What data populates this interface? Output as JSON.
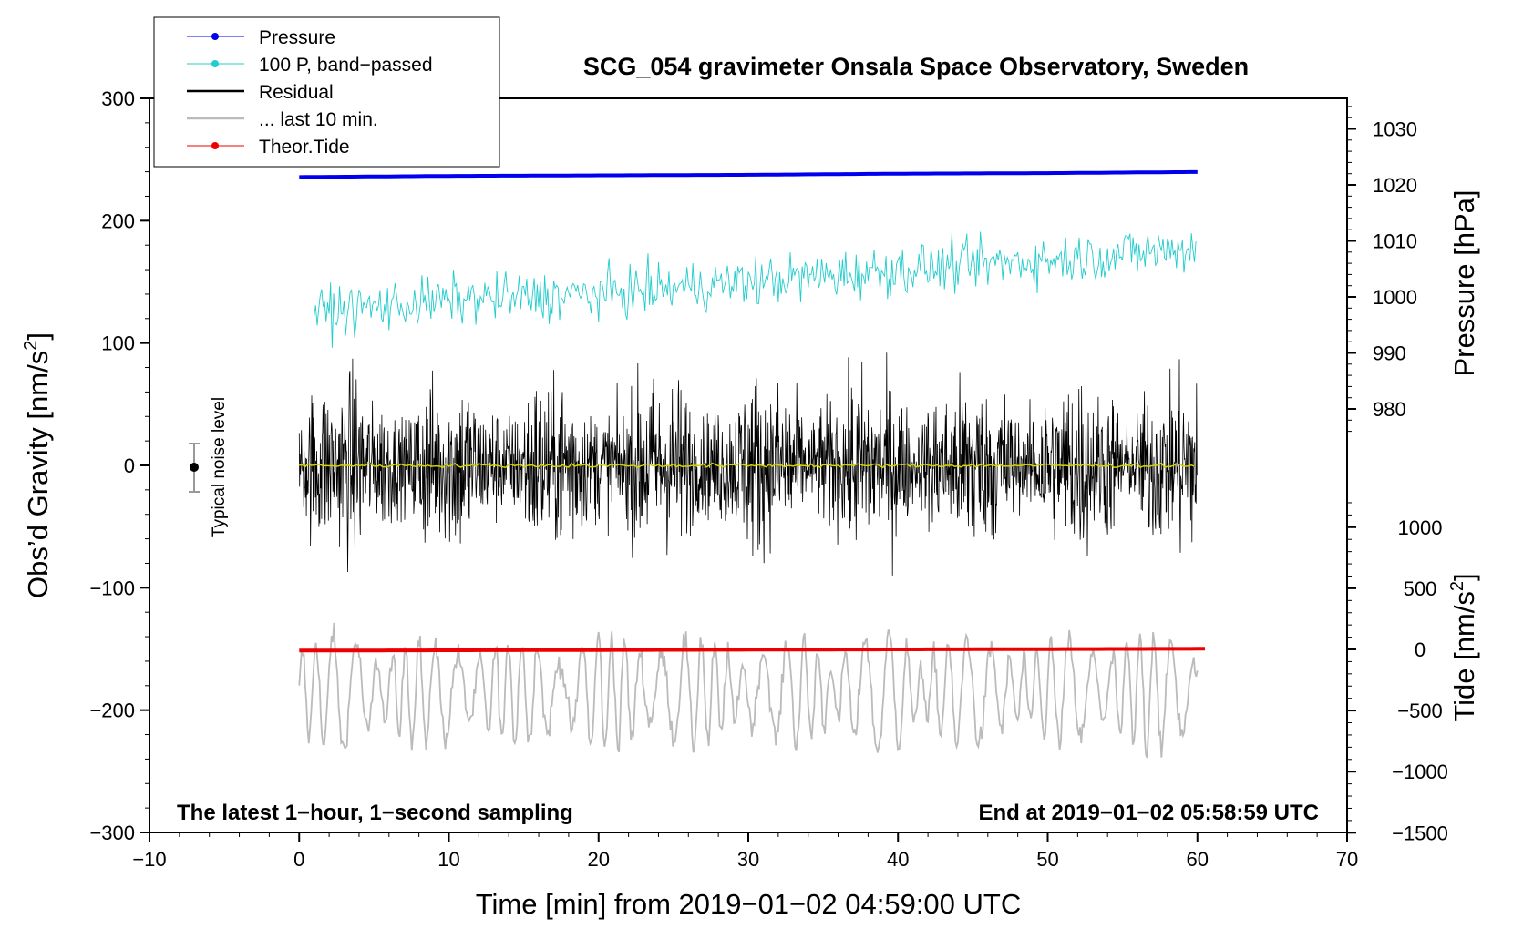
{
  "chart_data": {
    "type": "line",
    "title": "SCG_054 gravimeter Onsala Space Observatory, Sweden",
    "xlabel": "Time [min] from 2019−01−02 04:59:00 UTC",
    "ylabel": "Obs’d Gravity [nm/s",
    "ylabel_sup": "2",
    "ylabel_end": "]",
    "y2label": "Pressure [hPa]",
    "y3label": "Tide [nm/s",
    "y3label_sup": "2",
    "y3label_end": "]",
    "xlim": [
      -10,
      70
    ],
    "ylim": [
      -300,
      300
    ],
    "x_ticks": [
      "−10",
      "0",
      "10",
      "20",
      "30",
      "40",
      "50",
      "60",
      "70"
    ],
    "y_ticks": [
      "300",
      "200",
      "100",
      "0",
      "−100",
      "−200",
      "−300"
    ],
    "pressure_ticks": [
      "1030",
      "1020",
      "1010",
      "1000",
      "990",
      "980"
    ],
    "tide_ticks": [
      "1000",
      "500",
      "0",
      "−500",
      "−1000",
      "−1500"
    ],
    "noise_label": "Typical noise level",
    "annotation_left": "The latest 1−hour, 1−second sampling",
    "annotation_right": "End at 2019−01−02 05:58:59 UTC",
    "legend": [
      {
        "name": "Pressure",
        "color": "#0000ee",
        "marker": true
      },
      {
        "name": "100 P, band−passed",
        "color": "#22cccc",
        "marker": true
      },
      {
        "name": "Residual",
        "color": "#000000",
        "marker": false
      },
      {
        "name": "... last 10 min.",
        "color": "#bbbbbb",
        "marker": false
      },
      {
        "name": "Theor.Tide",
        "color": "#ee0000",
        "marker": true
      }
    ],
    "series": [
      {
        "name": "Pressure",
        "axis": "pressure_hPa",
        "x": [
          0,
          10,
          20,
          30,
          40,
          50,
          60
        ],
        "values": [
          1021.4,
          1021.6,
          1021.7,
          1021.8,
          1022.0,
          1022.1,
          1022.3
        ]
      },
      {
        "name": "100 P, band-passed",
        "axis": "gravity_nm_s2",
        "x": [
          1,
          10,
          20,
          30,
          40,
          50,
          60
        ],
        "values": [
          125,
          135,
          140,
          150,
          160,
          168,
          178
        ]
      },
      {
        "name": "Residual",
        "axis": "gravity_nm_s2",
        "x": [
          0,
          60
        ],
        "values": [
          0,
          0
        ],
        "amplitude_range": [
          -100,
          115
        ]
      },
      {
        "name": "... last 10 min.",
        "axis": "gravity_nm_s2",
        "x": [
          0,
          60
        ],
        "values": [
          -185,
          -185
        ],
        "amplitude_range": [
          -260,
          -105
        ]
      },
      {
        "name": "Theor.Tide",
        "axis": "tide_nm_s2",
        "x": [
          0,
          60.5
        ],
        "values": [
          -10,
          5
        ]
      }
    ]
  }
}
